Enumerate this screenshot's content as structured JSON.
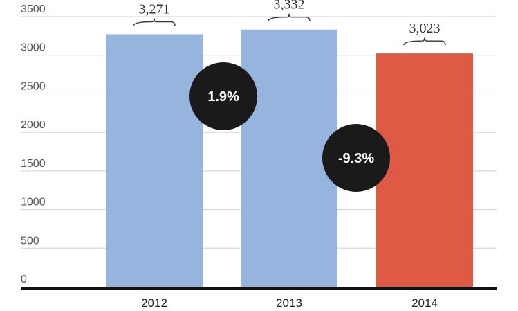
{
  "chart_data": {
    "type": "bar",
    "categories": [
      "2012",
      "2013",
      "2014"
    ],
    "values": [
      3271,
      3332,
      3023
    ],
    "value_labels": [
      "3,271",
      "3,332",
      "3,023"
    ],
    "bar_colors": [
      "#97b4de",
      "#97b4de",
      "#de5a45"
    ],
    "ylim": [
      0,
      3500
    ],
    "yticks": [
      0,
      500,
      1000,
      1500,
      2000,
      2500,
      3000,
      3500
    ],
    "grid": true,
    "change_bubbles": [
      {
        "label": "1.9%",
        "between": [
          "2012",
          "2013"
        ]
      },
      {
        "label": "-9.3%",
        "between": [
          "2013",
          "2014"
        ]
      }
    ],
    "colors": {
      "bubble": "#1a1a1a",
      "bubble_text": "#ffffff",
      "axis": "#111111",
      "grid": "#cfcfcf"
    }
  }
}
